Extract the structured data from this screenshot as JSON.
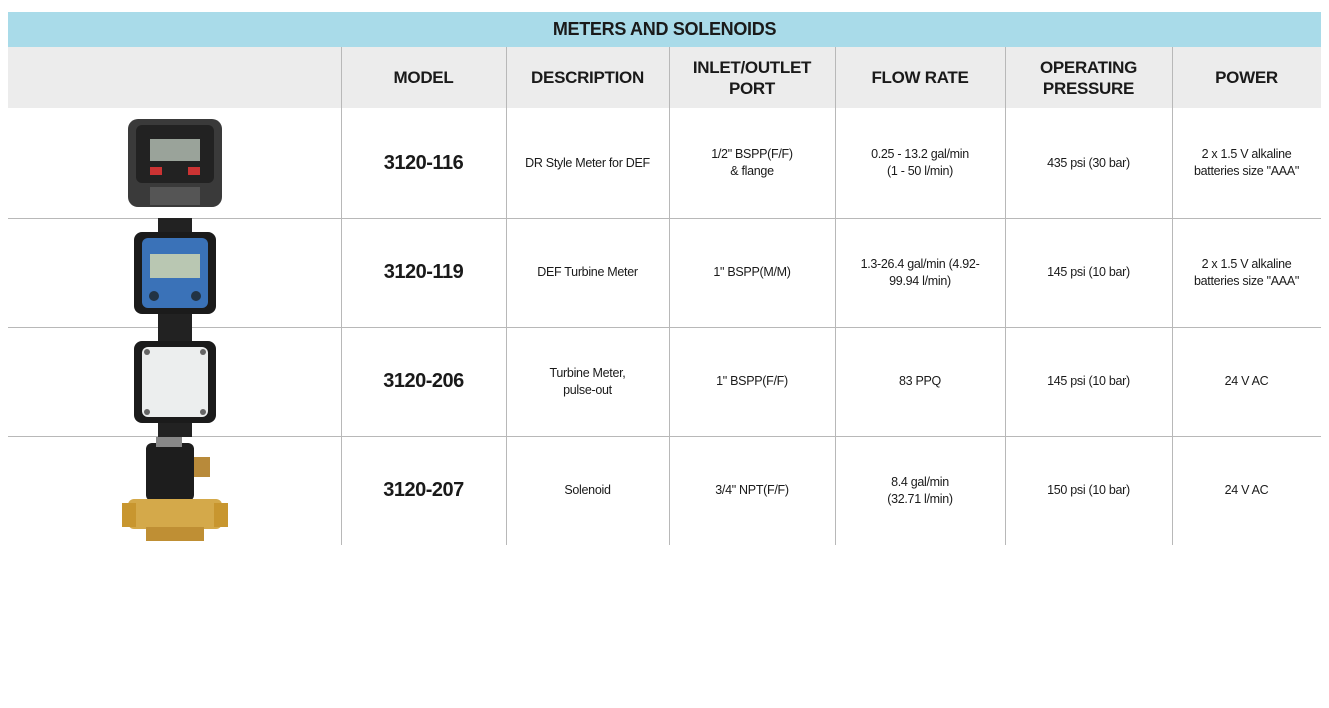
{
  "table": {
    "title": "METERS AND SOLENOIDS",
    "headers": [
      "MODEL",
      "DESCRIPTION",
      "INLET/OUTLET\nPORT",
      "FLOW RATE",
      "OPERATING\nPRESSURE",
      "POWER"
    ],
    "rows": [
      [
        "3120-116",
        "DR Style Meter for DEF",
        "1/2\" BSPP(F/F)\n& flange",
        "0.25 - 13.2 gal/min\n(1 - 50 l/min)",
        "435 psi (30 bar)",
        "2 x 1.5 V alkaline\nbatteries size \"AAA\""
      ],
      [
        "3120-119",
        "DEF Turbine Meter",
        "1\" BSPP(M/M)",
        "1.3-26.4 gal/min (4.92-\n99.94 l/min)",
        "145 psi (10 bar)",
        "2 x 1.5 V alkaline\nbatteries size \"AAA\""
      ],
      [
        "3120-206",
        "Turbine Meter,\npulse-out",
        "1\" BSPP(F/F)",
        "83 PPQ",
        "145 psi (10 bar)",
        "24 V AC"
      ],
      [
        "3120-207",
        "Solenoid",
        "3/4\" NPT(F/F)",
        "8.4 gal/min\n(32.71 l/min)",
        "150 psi (10 bar)",
        "24 V AC"
      ]
    ]
  }
}
